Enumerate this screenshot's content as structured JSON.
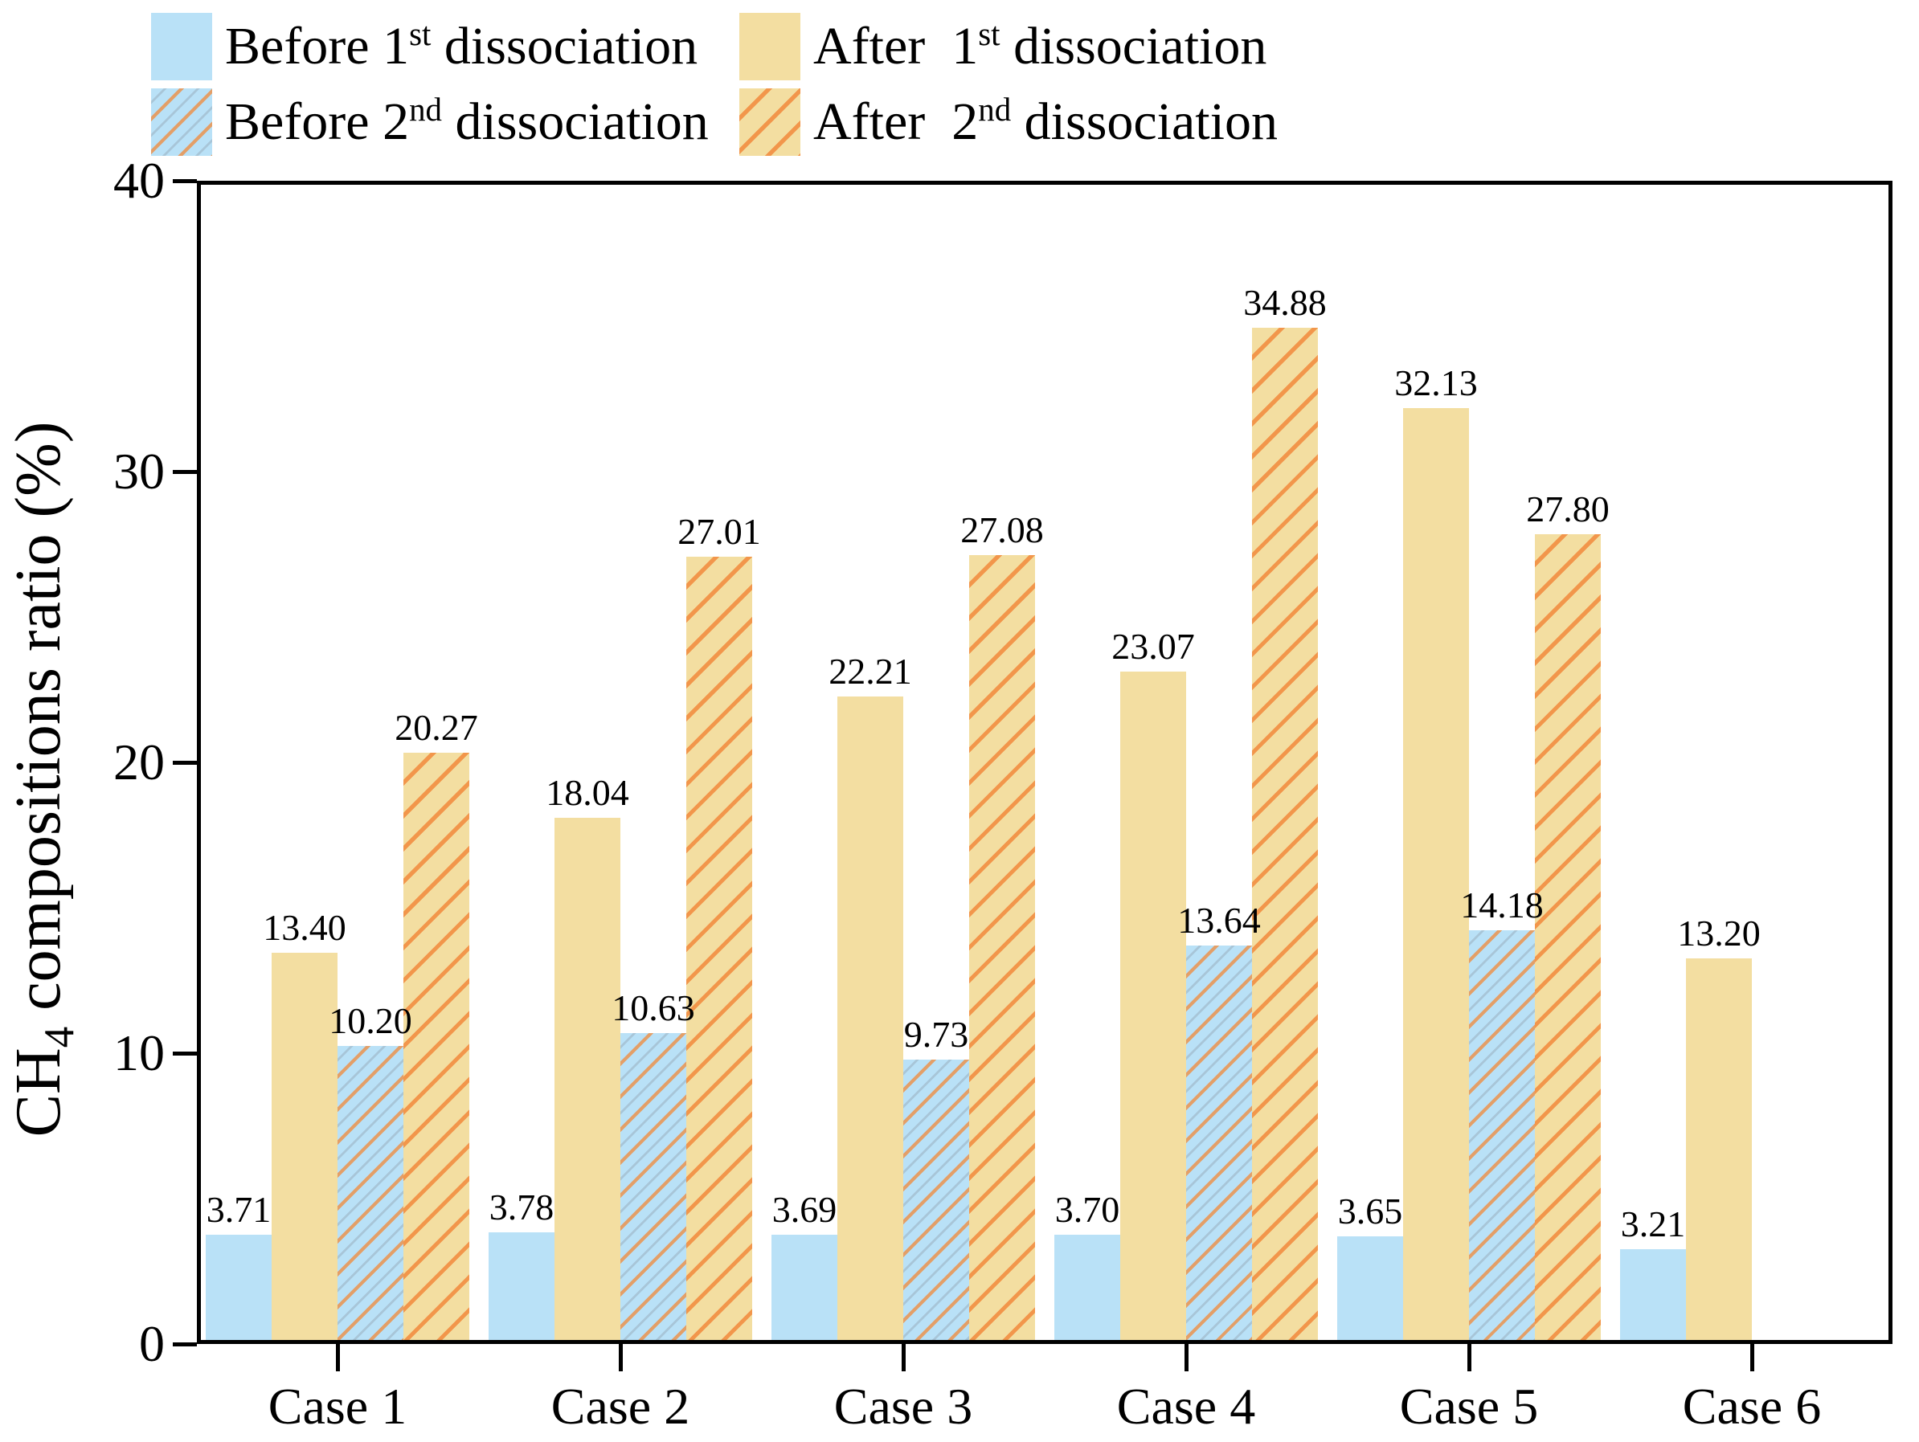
{
  "chart_data": {
    "type": "bar",
    "title": "",
    "ylabel_text": "CH4 compositions ratio (%)",
    "xlabel": "",
    "categories": [
      "Case 1",
      "Case 2",
      "Case 3",
      "Case 4",
      "Case 5",
      "Case 6"
    ],
    "series": [
      {
        "name": "Before 1st dissociation",
        "style": "blue-solid",
        "values": [
          3.71,
          3.78,
          3.69,
          3.7,
          3.65,
          3.21
        ],
        "labels": [
          "3.71",
          "3.78",
          "3.69",
          "3.70",
          "3.65",
          "3.21"
        ]
      },
      {
        "name": "After 1st dissociation",
        "style": "tan-solid",
        "values": [
          13.4,
          18.04,
          22.21,
          23.07,
          32.13,
          13.2
        ],
        "labels": [
          "13.40",
          "18.04",
          "22.21",
          "23.07",
          "32.13",
          "13.20"
        ]
      },
      {
        "name": "Before 2nd dissociation",
        "style": "blue-hatched",
        "values": [
          10.2,
          10.63,
          9.73,
          13.64,
          14.18,
          null
        ],
        "labels": [
          "10.20",
          "10.63",
          "9.73",
          "13.64",
          "14.18",
          null
        ]
      },
      {
        "name": "After 2nd dissociation",
        "style": "tan-hatched",
        "values": [
          20.27,
          27.01,
          27.08,
          34.88,
          27.8,
          null
        ],
        "labels": [
          "20.27",
          "27.01",
          "27.08",
          "34.88",
          "27.80",
          null
        ]
      }
    ],
    "ylim": [
      0,
      40
    ],
    "yticks": [
      0,
      10,
      20,
      30,
      40
    ],
    "ytick_labels": [
      "0",
      "10",
      "20",
      "30",
      "40"
    ],
    "grid": false,
    "legend_position": "top"
  },
  "axes": {
    "y_title": {
      "pre": "CH",
      "sub": "4",
      "post": " compositions ratio (%)"
    }
  },
  "legend": {
    "items": [
      {
        "prefix": "Before 1",
        "sup": "st",
        "suffix": " dissociation",
        "style": "blue-solid"
      },
      {
        "prefix": "After  1",
        "sup": "st",
        "suffix": " dissociation",
        "style": "tan-solid"
      },
      {
        "prefix": "Before 2",
        "sup": "nd",
        "suffix": " dissociation",
        "style": "blue-hatched"
      },
      {
        "prefix": "After  2",
        "sup": "nd",
        "suffix": " dissociation",
        "style": "tan-hatched"
      }
    ]
  },
  "colors": {
    "bar_blue": "#B9E1F7",
    "bar_tan": "#F3DEA1",
    "hatch_orange": "#F2964B",
    "hatch_on_blue": "#E39F68",
    "axis": "#000000",
    "text": "#000000",
    "background": "#FFFFFF"
  }
}
